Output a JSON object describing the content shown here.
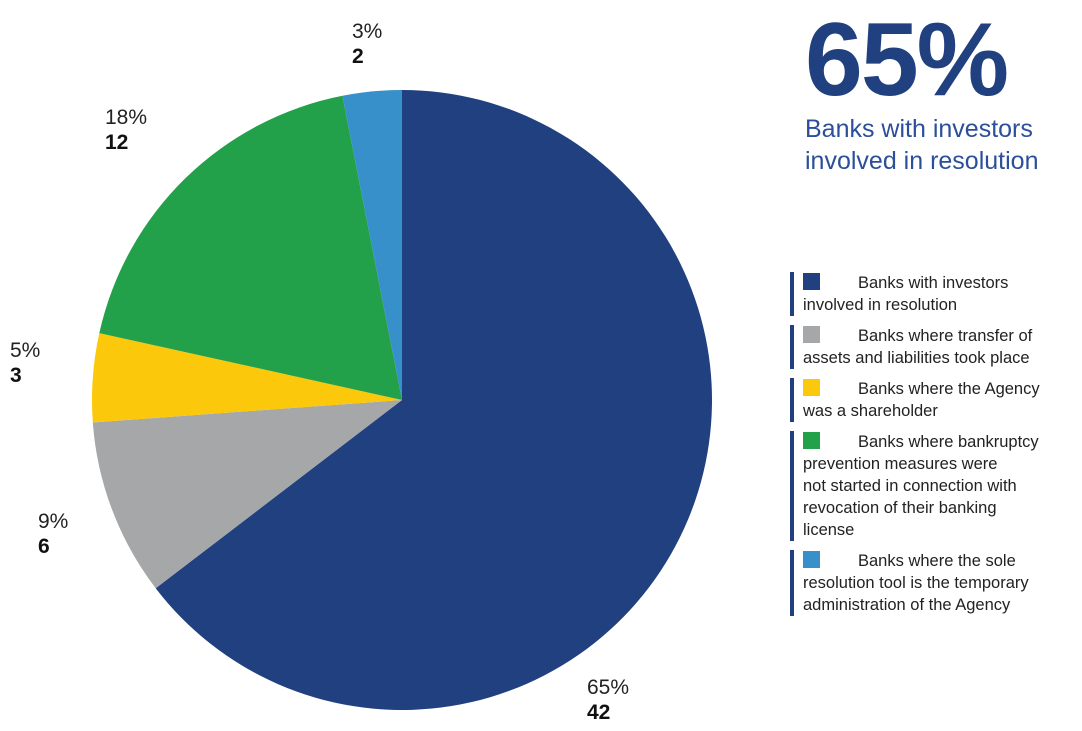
{
  "chart_data": {
    "type": "pie",
    "start": "12 o'clock, clockwise",
    "slices": [
      {
        "label": "Banks with investors involved in resolution",
        "value": 42,
        "percent": "65%",
        "color": "#21407f"
      },
      {
        "label": "Banks where transfer of assets and liabilities took place",
        "value": 6,
        "percent": "9%",
        "color": "#a5a7a9"
      },
      {
        "label": "Banks where the Agency was a shareholder",
        "value": 3,
        "percent": "5%",
        "color": "#fcc80b"
      },
      {
        "label": "Banks where bankruptcy prevention measures were not started in connection with revocation of their banking license",
        "value": 12,
        "percent": "18%",
        "color": "#22a04a"
      },
      {
        "label": "Banks where the sole resolution tool is the temporary administration of the Agency",
        "value": 2,
        "percent": "3%",
        "color": "#3790ca"
      }
    ]
  },
  "headline": {
    "value": "65%",
    "caption_line1": "Banks with investors",
    "caption_line2": "involved in resolution"
  },
  "labels": {
    "investors": {
      "pct": "65%",
      "count": "42"
    },
    "transfer": {
      "pct": "9%",
      "count": "6"
    },
    "shareholder": {
      "pct": "5%",
      "count": "3"
    },
    "bankruptcy": {
      "pct": "18%",
      "count": "12"
    },
    "temporary": {
      "pct": "3%",
      "count": "2"
    }
  },
  "legend": [
    {
      "line1": "Banks with investors",
      "rest": [
        "involved in resolution"
      ],
      "color": "#21407f"
    },
    {
      "line1": "Banks where transfer of",
      "rest": [
        "assets and liabilities took place"
      ],
      "color": "#a5a7a9"
    },
    {
      "line1": "Banks where the Agency",
      "rest": [
        "was a shareholder"
      ],
      "color": "#fcc80b"
    },
    {
      "line1": "Banks where bankruptcy",
      "rest": [
        "prevention measures were",
        "not started in connection with",
        "revocation of their banking",
        "license"
      ],
      "color": "#22a04a"
    },
    {
      "line1": "Banks where the sole",
      "rest": [
        "resolution tool is the temporary",
        "administration of the Agency"
      ],
      "color": "#3790ca"
    }
  ]
}
